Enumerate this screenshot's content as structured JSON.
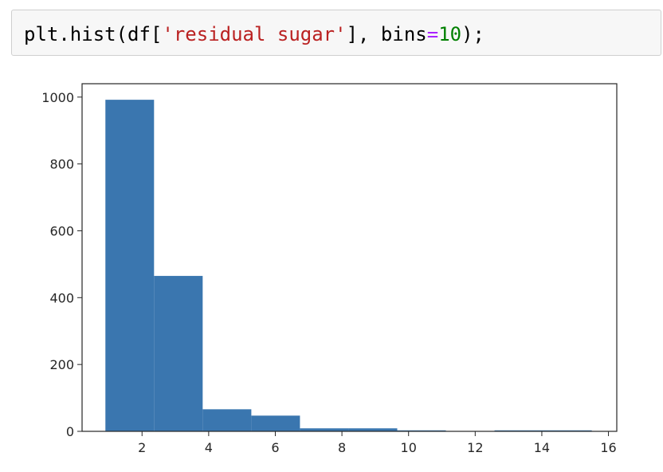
{
  "code_cell": {
    "tokens": [
      {
        "text": "plt.hist(df[",
        "kind": "plain"
      },
      {
        "text": "'residual sugar'",
        "kind": "string"
      },
      {
        "text": "], bins",
        "kind": "plain"
      },
      {
        "text": "=",
        "kind": "operator"
      },
      {
        "text": "10",
        "kind": "number"
      },
      {
        "text": ");",
        "kind": "plain"
      }
    ]
  },
  "colors": {
    "bar": "#3a76af",
    "axis": "#262626",
    "code_string": "#ba2121",
    "code_number": "#008000",
    "cell_background": "#f7f7f7"
  },
  "chart_data": {
    "type": "bar",
    "title": "",
    "xlabel": "",
    "ylabel": "",
    "grid": false,
    "bins": 10,
    "bin_edges": [
      0.9,
      2.36,
      3.82,
      5.28,
      6.74,
      8.2,
      9.66,
      11.12,
      12.58,
      14.04,
      15.5
    ],
    "values": [
      992,
      465,
      66,
      47,
      9,
      9,
      3,
      0,
      3,
      3
    ],
    "xlim": [
      0.2,
      16.25
    ],
    "ylim": [
      0,
      1040
    ],
    "xticks": [
      2,
      4,
      6,
      8,
      10,
      12,
      14,
      16
    ],
    "xtick_labels": [
      "2",
      "4",
      "6",
      "8",
      "10",
      "12",
      "14",
      "16"
    ],
    "yticks": [
      0,
      200,
      400,
      600,
      800,
      1000
    ],
    "ytick_labels": [
      "0",
      "200",
      "400",
      "600",
      "800",
      "1000"
    ]
  }
}
